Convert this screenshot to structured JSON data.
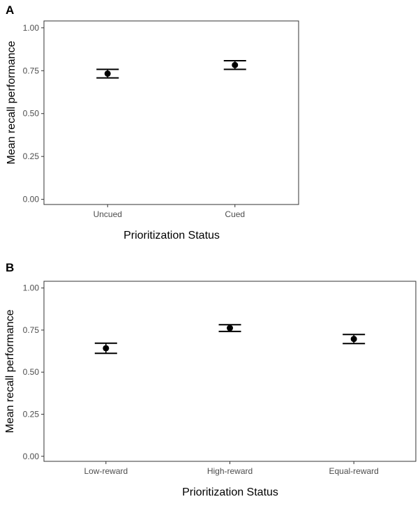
{
  "chart_data": [
    {
      "panel_label": "A",
      "type": "scatter",
      "subtype": "point-with-error-bars",
      "categories": [
        "Uncued",
        "Cued"
      ],
      "mean": [
        0.733,
        0.783
      ],
      "lower": [
        0.708,
        0.758
      ],
      "upper": [
        0.758,
        0.808
      ],
      "ylim": [
        -0.03,
        1.04
      ],
      "yticks": [
        "0.00",
        "0.25",
        "0.50",
        "0.75",
        "1.00"
      ],
      "ytick_values": [
        0,
        0.25,
        0.5,
        0.75,
        1.0
      ],
      "xlabel": "Prioritization Status",
      "ylabel": "Mean recall performance",
      "grid": false,
      "legend": "none"
    },
    {
      "panel_label": "B",
      "type": "scatter",
      "subtype": "point-with-error-bars",
      "categories": [
        "Low-reward",
        "High-reward",
        "Equal-reward"
      ],
      "mean": [
        0.642,
        0.762,
        0.697
      ],
      "lower": [
        0.612,
        0.742,
        0.67
      ],
      "upper": [
        0.672,
        0.782,
        0.724
      ],
      "ylim": [
        -0.03,
        1.04
      ],
      "yticks": [
        "0.00",
        "0.25",
        "0.50",
        "0.75",
        "1.00"
      ],
      "ytick_values": [
        0,
        0.25,
        0.5,
        0.75,
        1.0
      ],
      "xlabel": "Prioritization Status",
      "ylabel": "Mean recall performance",
      "grid": false,
      "legend": "none"
    }
  ],
  "colors": {
    "ink": "#000000",
    "tick_text": "#4d4d4d",
    "frame": "#333333"
  }
}
